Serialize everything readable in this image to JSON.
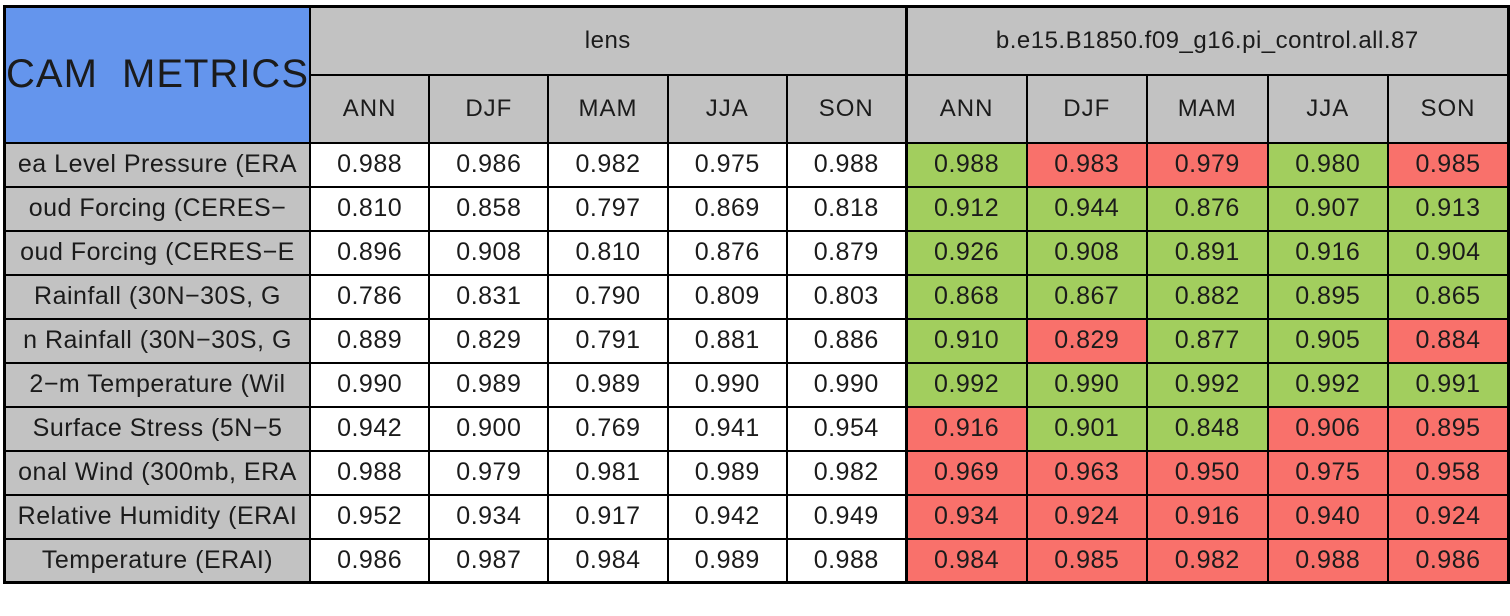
{
  "chart_data": {
    "type": "table",
    "title": "CAM METRICS",
    "column_groups": [
      {
        "label": "lens",
        "seasons": [
          "ANN",
          "DJF",
          "MAM",
          "JJA",
          "SON"
        ]
      },
      {
        "label": "b.e15.B1850.f09_g16.pi_control.all.87",
        "seasons": [
          "ANN",
          "DJF",
          "MAM",
          "JJA",
          "SON"
        ]
      }
    ],
    "colors": {
      "title_background": "#6495ED",
      "header_background": "#C2C2C2",
      "label_background": "#C2C2C2",
      "lens_cell_background": "#FFFFFF",
      "green_cell": "#A2CE5E",
      "red_cell": "#F9716B",
      "border": "#000000"
    },
    "rows": [
      {
        "label": "ea Level Pressure (ERA",
        "lens": [
          "0.988",
          "0.986",
          "0.982",
          "0.975",
          "0.988"
        ],
        "control": [
          "0.988",
          "0.983",
          "0.979",
          "0.980",
          "0.985"
        ],
        "control_cell_colors": [
          "green",
          "red",
          "red",
          "green",
          "red"
        ]
      },
      {
        "label": "oud Forcing (CERES−",
        "lens": [
          "0.810",
          "0.858",
          "0.797",
          "0.869",
          "0.818"
        ],
        "control": [
          "0.912",
          "0.944",
          "0.876",
          "0.907",
          "0.913"
        ],
        "control_cell_colors": [
          "green",
          "green",
          "green",
          "green",
          "green"
        ]
      },
      {
        "label": "oud Forcing (CERES−E",
        "lens": [
          "0.896",
          "0.908",
          "0.810",
          "0.876",
          "0.879"
        ],
        "control": [
          "0.926",
          "0.908",
          "0.891",
          "0.916",
          "0.904"
        ],
        "control_cell_colors": [
          "green",
          "green",
          "green",
          "green",
          "green"
        ]
      },
      {
        "label": "Rainfall (30N−30S, G",
        "lens": [
          "0.786",
          "0.831",
          "0.790",
          "0.809",
          "0.803"
        ],
        "control": [
          "0.868",
          "0.867",
          "0.882",
          "0.895",
          "0.865"
        ],
        "control_cell_colors": [
          "green",
          "green",
          "green",
          "green",
          "green"
        ]
      },
      {
        "label": "n Rainfall (30N−30S, G",
        "lens": [
          "0.889",
          "0.829",
          "0.791",
          "0.881",
          "0.886"
        ],
        "control": [
          "0.910",
          "0.829",
          "0.877",
          "0.905",
          "0.884"
        ],
        "control_cell_colors": [
          "green",
          "red",
          "green",
          "green",
          "red"
        ]
      },
      {
        "label": "2−m Temperature (Wil",
        "lens": [
          "0.990",
          "0.989",
          "0.989",
          "0.990",
          "0.990"
        ],
        "control": [
          "0.992",
          "0.990",
          "0.992",
          "0.992",
          "0.991"
        ],
        "control_cell_colors": [
          "green",
          "green",
          "green",
          "green",
          "green"
        ]
      },
      {
        "label": "Surface Stress (5N−5",
        "lens": [
          "0.942",
          "0.900",
          "0.769",
          "0.941",
          "0.954"
        ],
        "control": [
          "0.916",
          "0.901",
          "0.848",
          "0.906",
          "0.895"
        ],
        "control_cell_colors": [
          "red",
          "green",
          "green",
          "red",
          "red"
        ]
      },
      {
        "label": "onal Wind (300mb, ERA",
        "lens": [
          "0.988",
          "0.979",
          "0.981",
          "0.989",
          "0.982"
        ],
        "control": [
          "0.969",
          "0.963",
          "0.950",
          "0.975",
          "0.958"
        ],
        "control_cell_colors": [
          "red",
          "red",
          "red",
          "red",
          "red"
        ]
      },
      {
        "label": "Relative Humidity (ERAI",
        "lens": [
          "0.952",
          "0.934",
          "0.917",
          "0.942",
          "0.949"
        ],
        "control": [
          "0.934",
          "0.924",
          "0.916",
          "0.940",
          "0.924"
        ],
        "control_cell_colors": [
          "red",
          "red",
          "red",
          "red",
          "red"
        ]
      },
      {
        "label": "Temperature (ERAI)",
        "lens": [
          "0.986",
          "0.987",
          "0.984",
          "0.989",
          "0.988"
        ],
        "control": [
          "0.984",
          "0.985",
          "0.982",
          "0.988",
          "0.986"
        ],
        "control_cell_colors": [
          "red",
          "red",
          "red",
          "red",
          "red"
        ]
      }
    ]
  }
}
